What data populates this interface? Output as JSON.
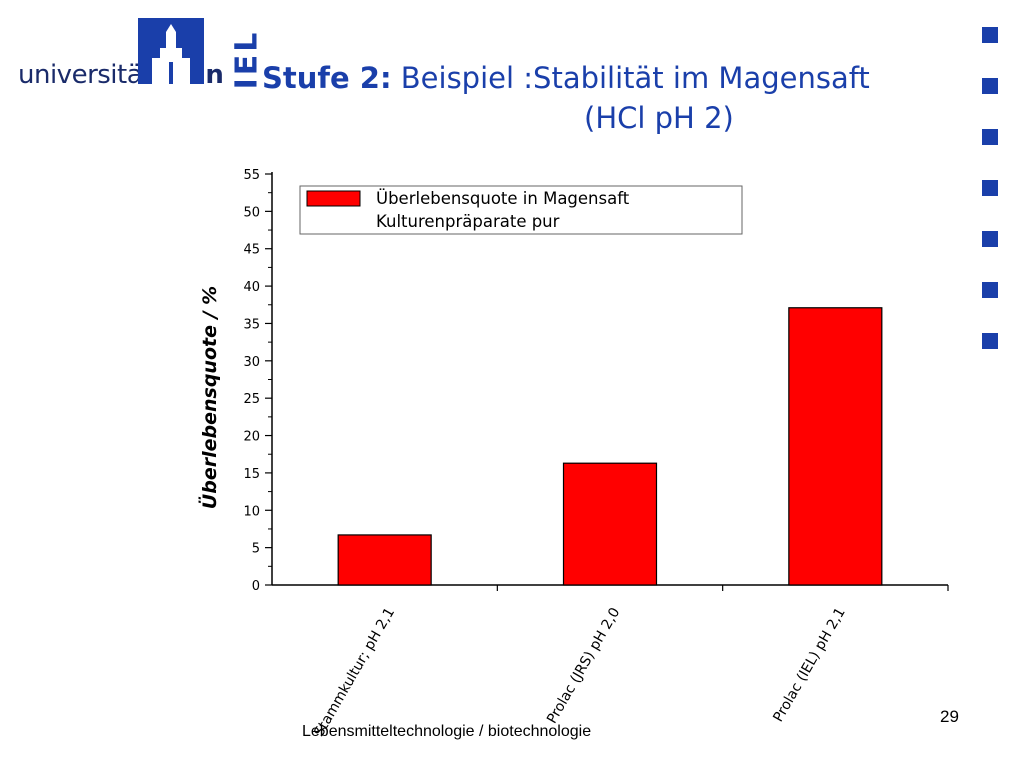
{
  "header": {
    "logo_light": "universität",
    "logo_bold": "bonn",
    "logo_side": "IEL",
    "title_bold": "Stufe 2:",
    "title_rest": " Beispiel :Stabilität im Magensaft",
    "title_line2": "(HCl pH 2)"
  },
  "colors": {
    "accent": "#1a3faa",
    "bar": "#ff0000"
  },
  "chart_data": {
    "type": "bar",
    "categories": [
      "Stammkultur; pH 2,1",
      "Prolac (JRS) pH 2,0",
      "Prolac (IEL)  pH 2,1"
    ],
    "series": [
      {
        "name": "Überlebensquote in Magensaft Kulturenpräparate pur",
        "values": [
          6.7,
          16.3,
          37.1
        ]
      }
    ],
    "legend_lines": [
      "Überlebensquote in Magensaft",
      "Kulturenpräparate pur"
    ],
    "ylabel": "Überlebensquote / %",
    "ylim": [
      0,
      55
    ],
    "yticks": [
      0,
      5,
      10,
      15,
      20,
      25,
      30,
      35,
      40,
      45,
      50,
      55
    ],
    "legend_position": "top-right",
    "grid": false
  },
  "footer": {
    "text": "Lebensmitteltechnologie / biotechnologie",
    "page": "29"
  }
}
